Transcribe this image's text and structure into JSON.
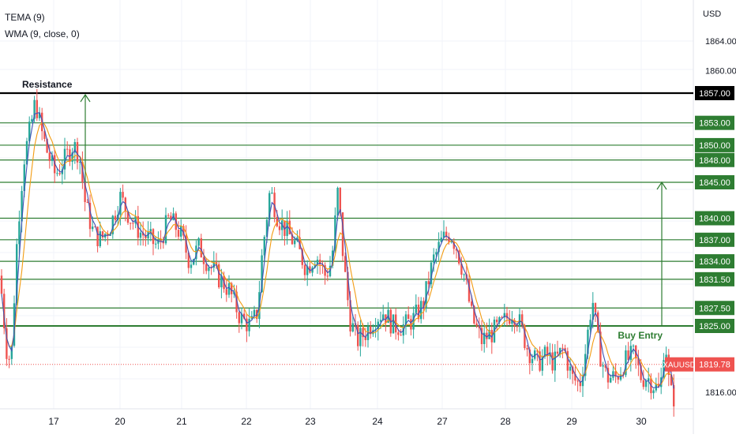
{
  "legend": {
    "tema": "TEMA (9)",
    "wma": "WMA (9, close, 0)"
  },
  "currency": "USD",
  "chart_data": {
    "type": "candlestick",
    "symbol": "XAUUSD",
    "last_price": "1819.78",
    "y_ticks": [
      "1864.00",
      "1860.00",
      "1816.00"
    ],
    "x_ticks": [
      "17",
      "20",
      "21",
      "22",
      "23",
      "24",
      "27",
      "28",
      "29",
      "30"
    ],
    "resistance": {
      "label": "Resistance",
      "price": "1857.00"
    },
    "levels": [
      "1853.00",
      "1850.00",
      "1848.00",
      "1845.00",
      "1840.00",
      "1837.00",
      "1834.00",
      "1831.50",
      "1827.50",
      "1825.00"
    ],
    "buy_entry": {
      "label": "Buy Entry",
      "price": "1825.00"
    },
    "indicators": [
      "TEMA (9)",
      "WMA (9, close, 0)"
    ],
    "colors": {
      "up": "#26a69a",
      "down": "#ef5350",
      "level": "#2e7d32",
      "level_label_bg": "#2e7d32",
      "resistance": "#000000",
      "tema": "#3f51b5",
      "wma": "#f39c12",
      "price_label_bg": "#ef5350"
    }
  }
}
